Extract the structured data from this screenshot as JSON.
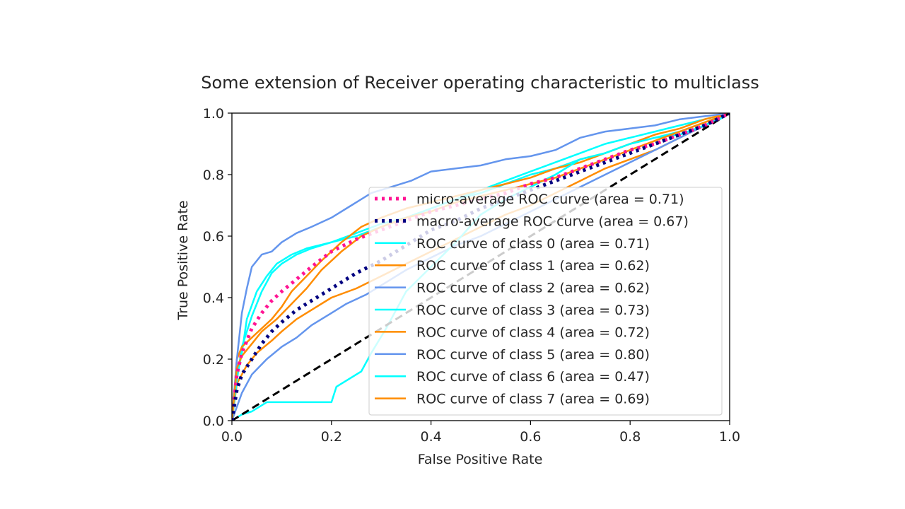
{
  "chart_data": {
    "type": "line",
    "title": "Some extension of Receiver operating characteristic to multiclass",
    "xlabel": "False Positive Rate",
    "ylabel": "True Positive Rate",
    "xlim": [
      0.0,
      1.0
    ],
    "ylim": [
      0.0,
      1.0
    ],
    "x_ticks": [
      "0.0",
      "0.2",
      "0.4",
      "0.6",
      "0.8",
      "1.0"
    ],
    "y_ticks": [
      "0.0",
      "0.2",
      "0.4",
      "0.6",
      "0.8",
      "1.0"
    ],
    "grid": false,
    "legend_position": "lower-right",
    "series": [
      {
        "name": "micro-average ROC curve (area = 0.71)",
        "color": "#ff1493",
        "style": "dotted",
        "x": [
          0.0,
          0.01,
          0.02,
          0.04,
          0.06,
          0.08,
          0.1,
          0.13,
          0.16,
          0.2,
          0.25,
          0.3,
          0.35,
          0.4,
          0.45,
          0.5,
          0.55,
          0.6,
          0.65,
          0.7,
          0.75,
          0.8,
          0.85,
          0.9,
          0.95,
          1.0
        ],
        "y": [
          0.0,
          0.15,
          0.22,
          0.3,
          0.35,
          0.39,
          0.42,
          0.46,
          0.5,
          0.55,
          0.59,
          0.62,
          0.65,
          0.68,
          0.7,
          0.72,
          0.74,
          0.77,
          0.79,
          0.82,
          0.85,
          0.88,
          0.9,
          0.93,
          0.96,
          1.0
        ]
      },
      {
        "name": "macro-average ROC curve (area = 0.67)",
        "color": "#000080",
        "style": "dotted",
        "x": [
          0.0,
          0.01,
          0.02,
          0.04,
          0.06,
          0.08,
          0.1,
          0.13,
          0.16,
          0.2,
          0.25,
          0.3,
          0.35,
          0.4,
          0.45,
          0.5,
          0.55,
          0.6,
          0.65,
          0.7,
          0.75,
          0.8,
          0.85,
          0.9,
          0.95,
          1.0
        ],
        "y": [
          0.0,
          0.1,
          0.15,
          0.2,
          0.25,
          0.29,
          0.32,
          0.36,
          0.39,
          0.43,
          0.48,
          0.52,
          0.57,
          0.62,
          0.65,
          0.69,
          0.72,
          0.75,
          0.78,
          0.81,
          0.84,
          0.87,
          0.9,
          0.93,
          0.96,
          1.0
        ]
      },
      {
        "name": "ROC curve of class 0 (area = 0.71)",
        "color": "#00ffff",
        "style": "solid",
        "x": [
          0.0,
          0.01,
          0.02,
          0.03,
          0.05,
          0.07,
          0.09,
          0.12,
          0.15,
          0.2,
          0.25,
          0.3,
          0.35,
          0.4,
          0.45,
          0.5,
          0.55,
          0.6,
          0.65,
          0.7,
          0.75,
          0.8,
          0.85,
          0.9,
          0.95,
          1.0
        ],
        "y": [
          0.0,
          0.14,
          0.22,
          0.33,
          0.42,
          0.47,
          0.51,
          0.54,
          0.56,
          0.58,
          0.61,
          0.64,
          0.66,
          0.69,
          0.72,
          0.74,
          0.77,
          0.8,
          0.82,
          0.85,
          0.87,
          0.9,
          0.92,
          0.94,
          0.97,
          1.0
        ]
      },
      {
        "name": "ROC curve of class 1 (area = 0.62)",
        "color": "#ff8c00",
        "style": "solid",
        "x": [
          0.0,
          0.01,
          0.03,
          0.05,
          0.08,
          0.1,
          0.13,
          0.16,
          0.2,
          0.25,
          0.3,
          0.35,
          0.4,
          0.45,
          0.5,
          0.55,
          0.6,
          0.65,
          0.7,
          0.75,
          0.8,
          0.85,
          0.9,
          0.95,
          1.0
        ],
        "y": [
          0.0,
          0.12,
          0.18,
          0.22,
          0.26,
          0.29,
          0.33,
          0.36,
          0.4,
          0.43,
          0.47,
          0.51,
          0.55,
          0.59,
          0.63,
          0.67,
          0.7,
          0.74,
          0.78,
          0.82,
          0.85,
          0.88,
          0.92,
          0.96,
          1.0
        ]
      },
      {
        "name": "ROC curve of class 2 (area = 0.62)",
        "color": "#6495ed",
        "style": "solid",
        "x": [
          0.0,
          0.02,
          0.04,
          0.07,
          0.1,
          0.13,
          0.16,
          0.2,
          0.23,
          0.27,
          0.31,
          0.35,
          0.4,
          0.45,
          0.5,
          0.55,
          0.6,
          0.65,
          0.7,
          0.75,
          0.8,
          0.85,
          0.9,
          0.95,
          1.0
        ],
        "y": [
          0.0,
          0.09,
          0.15,
          0.2,
          0.24,
          0.27,
          0.31,
          0.35,
          0.38,
          0.41,
          0.45,
          0.49,
          0.53,
          0.57,
          0.6,
          0.64,
          0.68,
          0.72,
          0.76,
          0.8,
          0.84,
          0.88,
          0.92,
          0.96,
          1.0
        ]
      },
      {
        "name": "ROC curve of class 3 (area = 0.73)",
        "color": "#00ffff",
        "style": "solid",
        "x": [
          0.0,
          0.01,
          0.02,
          0.04,
          0.06,
          0.08,
          0.1,
          0.13,
          0.16,
          0.2,
          0.25,
          0.3,
          0.35,
          0.4,
          0.45,
          0.5,
          0.55,
          0.6,
          0.65,
          0.7,
          0.75,
          0.8,
          0.85,
          0.9,
          0.95,
          1.0
        ],
        "y": [
          0.0,
          0.13,
          0.24,
          0.34,
          0.42,
          0.48,
          0.51,
          0.54,
          0.56,
          0.58,
          0.6,
          0.63,
          0.66,
          0.69,
          0.72,
          0.75,
          0.78,
          0.81,
          0.84,
          0.87,
          0.9,
          0.92,
          0.94,
          0.96,
          0.98,
          1.0
        ]
      },
      {
        "name": "ROC curve of class 4 (area = 0.72)",
        "color": "#ff8c00",
        "style": "solid",
        "x": [
          0.0,
          0.01,
          0.02,
          0.04,
          0.06,
          0.08,
          0.1,
          0.12,
          0.15,
          0.18,
          0.22,
          0.26,
          0.3,
          0.35,
          0.4,
          0.45,
          0.5,
          0.55,
          0.6,
          0.65,
          0.7,
          0.75,
          0.8,
          0.85,
          0.9,
          0.95,
          1.0
        ],
        "y": [
          0.0,
          0.2,
          0.24,
          0.27,
          0.3,
          0.33,
          0.37,
          0.42,
          0.47,
          0.52,
          0.58,
          0.63,
          0.66,
          0.69,
          0.71,
          0.73,
          0.75,
          0.77,
          0.79,
          0.82,
          0.84,
          0.87,
          0.9,
          0.93,
          0.95,
          0.98,
          1.0
        ]
      },
      {
        "name": "ROC curve of class 5 (area = 0.80)",
        "color": "#6495ed",
        "style": "solid",
        "x": [
          0.0,
          0.01,
          0.02,
          0.03,
          0.04,
          0.06,
          0.08,
          0.1,
          0.13,
          0.16,
          0.2,
          0.24,
          0.28,
          0.32,
          0.36,
          0.4,
          0.45,
          0.5,
          0.55,
          0.6,
          0.65,
          0.7,
          0.75,
          0.8,
          0.85,
          0.9,
          0.95,
          1.0
        ],
        "y": [
          0.0,
          0.2,
          0.35,
          0.43,
          0.5,
          0.54,
          0.55,
          0.58,
          0.61,
          0.63,
          0.66,
          0.7,
          0.74,
          0.76,
          0.78,
          0.81,
          0.82,
          0.83,
          0.85,
          0.86,
          0.88,
          0.92,
          0.94,
          0.95,
          0.96,
          0.98,
          0.99,
          1.0
        ]
      },
      {
        "name": "ROC curve of class 6 (area = 0.47)",
        "color": "#00ffff",
        "style": "solid",
        "x": [
          0.0,
          0.02,
          0.04,
          0.07,
          0.1,
          0.13,
          0.18,
          0.2,
          0.21,
          0.26,
          0.28,
          0.31,
          0.35,
          0.4,
          0.45,
          0.5,
          0.55,
          0.6,
          0.65,
          0.7,
          0.75,
          0.8,
          0.85,
          0.9,
          0.95,
          0.98,
          1.0
        ],
        "y": [
          0.0,
          0.02,
          0.03,
          0.06,
          0.06,
          0.06,
          0.06,
          0.06,
          0.11,
          0.16,
          0.22,
          0.3,
          0.42,
          0.5,
          0.58,
          0.67,
          0.72,
          0.76,
          0.8,
          0.85,
          0.87,
          0.9,
          0.92,
          0.93,
          0.96,
          0.98,
          1.0
        ]
      },
      {
        "name": "ROC curve of class 7 (area = 0.69)",
        "color": "#ff8c00",
        "style": "solid",
        "x": [
          0.0,
          0.01,
          0.02,
          0.04,
          0.06,
          0.09,
          0.12,
          0.15,
          0.18,
          0.22,
          0.26,
          0.3,
          0.35,
          0.4,
          0.45,
          0.5,
          0.55,
          0.6,
          0.65,
          0.7,
          0.75,
          0.8,
          0.85,
          0.9,
          0.95,
          1.0
        ],
        "y": [
          0.0,
          0.17,
          0.21,
          0.25,
          0.29,
          0.33,
          0.38,
          0.43,
          0.49,
          0.55,
          0.6,
          0.63,
          0.66,
          0.68,
          0.71,
          0.73,
          0.75,
          0.77,
          0.79,
          0.82,
          0.85,
          0.88,
          0.91,
          0.94,
          0.97,
          1.0
        ]
      },
      {
        "name": "",
        "color": "#000000",
        "style": "dashed",
        "x": [
          0.0,
          1.0
        ],
        "y": [
          0.0,
          1.0
        ]
      }
    ]
  }
}
